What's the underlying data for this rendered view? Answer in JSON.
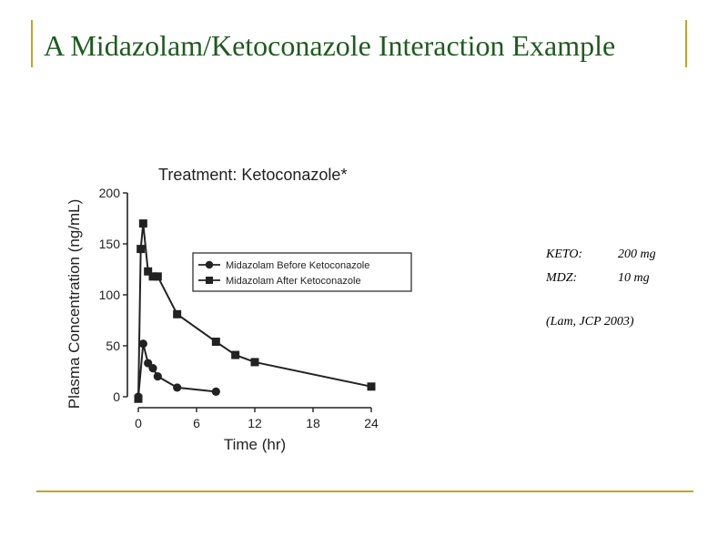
{
  "slide": {
    "title": "A Midazolam/Ketoconazole Interaction Example",
    "accent_color": "#c9a227",
    "title_color": "#1f5b1f"
  },
  "notes": {
    "keto_label": "KETO:",
    "keto_dose": "200 mg",
    "mdz_label": "MDZ:",
    "mdz_dose": "10 mg",
    "citation": "(Lam, JCP 2003)"
  },
  "chart_data": {
    "type": "line",
    "title": "Treatment: Ketoconazole*",
    "xlabel": "Time (hr)",
    "ylabel": "Plasma Concentration (ng/mL)",
    "xlim": [
      0,
      24
    ],
    "ylim": [
      0,
      200
    ],
    "xticks": [
      0,
      6,
      12,
      18,
      24
    ],
    "yticks": [
      0,
      50,
      100,
      150,
      200
    ],
    "legend_position": "center-right",
    "grid": false,
    "series": [
      {
        "name": "Midazolam Before Ketoconazole",
        "marker": "circle",
        "x": [
          0,
          0.5,
          1,
          1.5,
          2,
          4,
          8
        ],
        "y": [
          0,
          52,
          33,
          28,
          20,
          9,
          5
        ]
      },
      {
        "name": "Midazolam After Ketoconazole",
        "marker": "square",
        "x": [
          0,
          0.25,
          0.5,
          1,
          1.5,
          2,
          4,
          8,
          10,
          12,
          24
        ],
        "y": [
          -2,
          145,
          170,
          123,
          118,
          118,
          81,
          54,
          41,
          34,
          10
        ]
      }
    ]
  }
}
